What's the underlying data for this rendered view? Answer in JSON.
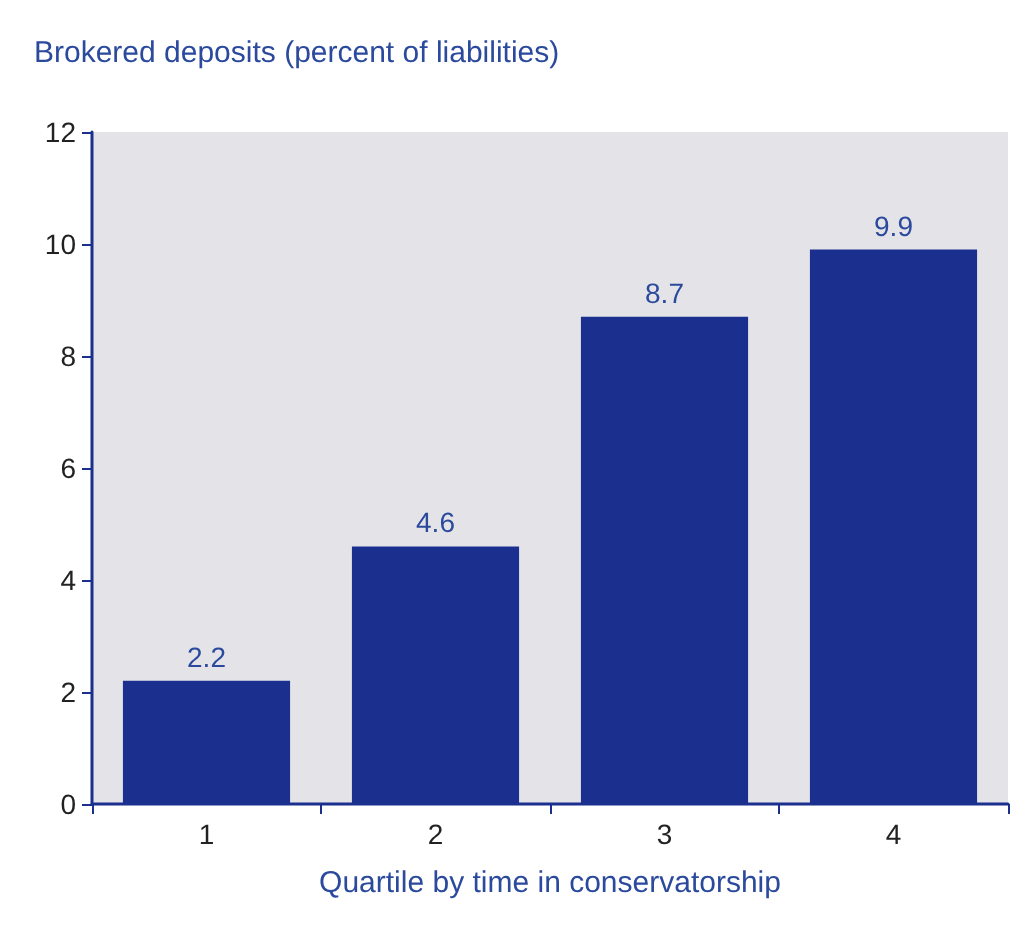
{
  "chart_data": {
    "type": "bar",
    "title": "Brokered deposits (percent of liabilities)",
    "xlabel": "Quartile by time in conservatorship",
    "categories": [
      "1",
      "2",
      "3",
      "4"
    ],
    "values": [
      2.2,
      4.6,
      8.7,
      9.9
    ],
    "color": "#1b2f8e",
    "ylim": [
      0,
      12
    ],
    "yticks": [
      0,
      2,
      4,
      6,
      8,
      10,
      12
    ],
    "grid": false,
    "data_labels": true
  }
}
